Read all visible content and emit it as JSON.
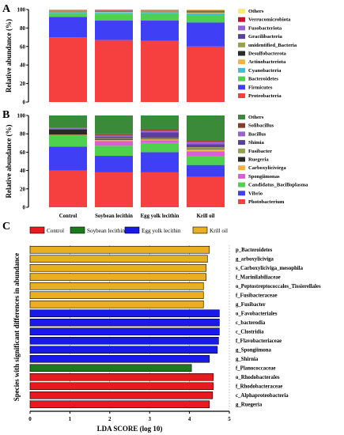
{
  "figure": {
    "panels": [
      "A",
      "B",
      "C"
    ]
  },
  "chart_data": [
    {
      "type": "bar",
      "stacked": true,
      "panel": "A",
      "ylabel": "Relative abundance (%)",
      "ylim": [
        0,
        100
      ],
      "yticks": [
        "0",
        "20",
        "40",
        "60",
        "80",
        "100"
      ],
      "categories": [
        "Control",
        "Soybean lecithin",
        "Egg yolk lecithin",
        "Krill oil"
      ],
      "series": [
        {
          "name": "Proteobacteria",
          "color": "#f5403f",
          "values": [
            70,
            67,
            66,
            60
          ]
        },
        {
          "name": "Firmicutes",
          "color": "#3f3ff5",
          "values": [
            22,
            21,
            22,
            26
          ]
        },
        {
          "name": "Bacteroidetes",
          "color": "#4fd04f",
          "values": [
            4,
            7,
            8,
            8
          ]
        },
        {
          "name": "Cyanobacteria",
          "color": "#3fbfd8",
          "values": [
            1.5,
            1.5,
            1.5,
            2
          ]
        },
        {
          "name": "Actinobacteriota",
          "color": "#f2b43a",
          "values": [
            0.5,
            1,
            0.5,
            1
          ]
        },
        {
          "name": "Desulfobacterota",
          "color": "#2a2a2a",
          "values": [
            0.5,
            0.5,
            0.5,
            0.8
          ]
        },
        {
          "name": "unidentified_Bacteria",
          "color": "#9aa04a",
          "values": [
            0.5,
            0.5,
            0.5,
            0.6
          ]
        },
        {
          "name": "Gracilibacteria",
          "color": "#5a3fa0",
          "values": [
            0.3,
            0.5,
            0.3,
            0.4
          ]
        },
        {
          "name": "Fusobacteriota",
          "color": "#9a5fd0",
          "values": [
            0.2,
            0.5,
            0.2,
            0.3
          ]
        },
        {
          "name": "Verrucomicrobiota",
          "color": "#c8102e",
          "values": [
            0.2,
            0.3,
            0.2,
            0.3
          ]
        },
        {
          "name": "Others",
          "color": "#f7ee6a",
          "values": [
            0.3,
            0.2,
            0.3,
            0.6
          ]
        }
      ]
    },
    {
      "type": "bar",
      "stacked": true,
      "panel": "B",
      "ylabel": "Relative abundance (%)",
      "ylim": [
        0,
        100
      ],
      "yticks": [
        "0",
        "20",
        "40",
        "60",
        "80",
        "100"
      ],
      "categories": [
        "Control",
        "Soybean lecithin",
        "Egg yolk lecithin",
        "Krill oil"
      ],
      "series": [
        {
          "name": "Photobacterium",
          "color": "#f5403f",
          "values": [
            40,
            38,
            38,
            33
          ]
        },
        {
          "name": "Vibrio",
          "color": "#3f3ff5",
          "values": [
            26,
            18,
            22,
            13
          ]
        },
        {
          "name": "Candidatus_Bacilloplasma",
          "color": "#4fd04f",
          "values": [
            12,
            11,
            10,
            10
          ]
        },
        {
          "name": "Spongiimonas",
          "color": "#d85fd8",
          "values": [
            0.5,
            5,
            3,
            5
          ]
        },
        {
          "name": "Carboxylicivirga",
          "color": "#f2b43a",
          "values": [
            0.5,
            1.5,
            1,
            2
          ]
        },
        {
          "name": "Ruegeria",
          "color": "#2a2a2a",
          "values": [
            6,
            1,
            0.5,
            0.5
          ]
        },
        {
          "name": "Fusibacter",
          "color": "#9aa04a",
          "values": [
            0.5,
            1,
            1,
            2
          ]
        },
        {
          "name": "Shimia",
          "color": "#5a3fa0",
          "values": [
            0.5,
            1.5,
            6,
            3
          ]
        },
        {
          "name": "Bacillus",
          "color": "#9a5fd0",
          "values": [
            0.5,
            1.5,
            2,
            3
          ]
        },
        {
          "name": "Solibacillus",
          "color": "#8b3a2a",
          "values": [
            0.5,
            1,
            1,
            1.5
          ]
        },
        {
          "name": "Others",
          "color": "#3a8a3a",
          "values": [
            13,
            20.5,
            15.5,
            27
          ]
        }
      ]
    },
    {
      "type": "bar",
      "orientation": "horizontal",
      "panel": "C",
      "xlabel": "LDA SCORE (log 10)",
      "ylabel": "Species with significant differences in abundance",
      "xlim": [
        0,
        5
      ],
      "xticks": [
        "0",
        "1",
        "2",
        "3",
        "4",
        "5"
      ],
      "groups": [
        {
          "name": "Control",
          "color": "#e8191f"
        },
        {
          "name": "Soybean lecithin",
          "color": "#1c7a1c"
        },
        {
          "name": "Egg yolk lecithin",
          "color": "#1919ea"
        },
        {
          "name": "Krill oil",
          "color": "#e8b020"
        }
      ],
      "features": [
        {
          "name": "p_Bacteroidetes",
          "value": 4.5,
          "group": "Krill oil"
        },
        {
          "name": "g_arboxyliciviga",
          "value": 4.45,
          "group": "Krill oil"
        },
        {
          "name": "s_Carboxyliciviga_mesophila",
          "value": 4.42,
          "group": "Krill oil"
        },
        {
          "name": "f_Marinilabiliaceae",
          "value": 4.42,
          "group": "Krill oil"
        },
        {
          "name": "o_Peptostreptococcales_Tissierellales",
          "value": 4.35,
          "group": "Krill oil"
        },
        {
          "name": "f_Fusibacteraceae",
          "value": 4.35,
          "group": "Krill oil"
        },
        {
          "name": "g_Fusibacter",
          "value": 4.35,
          "group": "Krill oil"
        },
        {
          "name": "o_Favobacteriales",
          "value": 4.75,
          "group": "Egg yolk lecithin"
        },
        {
          "name": "c_bacterodia",
          "value": 4.75,
          "group": "Egg yolk lecithin"
        },
        {
          "name": "c_Clostridia",
          "value": 4.75,
          "group": "Egg yolk lecithin"
        },
        {
          "name": "f_Flavobacteriaceae",
          "value": 4.73,
          "group": "Egg yolk lecithin"
        },
        {
          "name": "g_Spongiimona",
          "value": 4.7,
          "group": "Egg yolk lecithin"
        },
        {
          "name": "g_Shirnia",
          "value": 4.5,
          "group": "Egg yolk lecithin"
        },
        {
          "name": "f_Planococcaceae",
          "value": 4.05,
          "group": "Soybean lecithin"
        },
        {
          "name": "o_Rhodobacterales",
          "value": 4.6,
          "group": "Control"
        },
        {
          "name": "f_Rhodobacteraceae",
          "value": 4.6,
          "group": "Control"
        },
        {
          "name": "c_Alphaproteobacteria",
          "value": 4.58,
          "group": "Control"
        },
        {
          "name": "g_Ruegeria",
          "value": 4.5,
          "group": "Control"
        }
      ]
    }
  ]
}
